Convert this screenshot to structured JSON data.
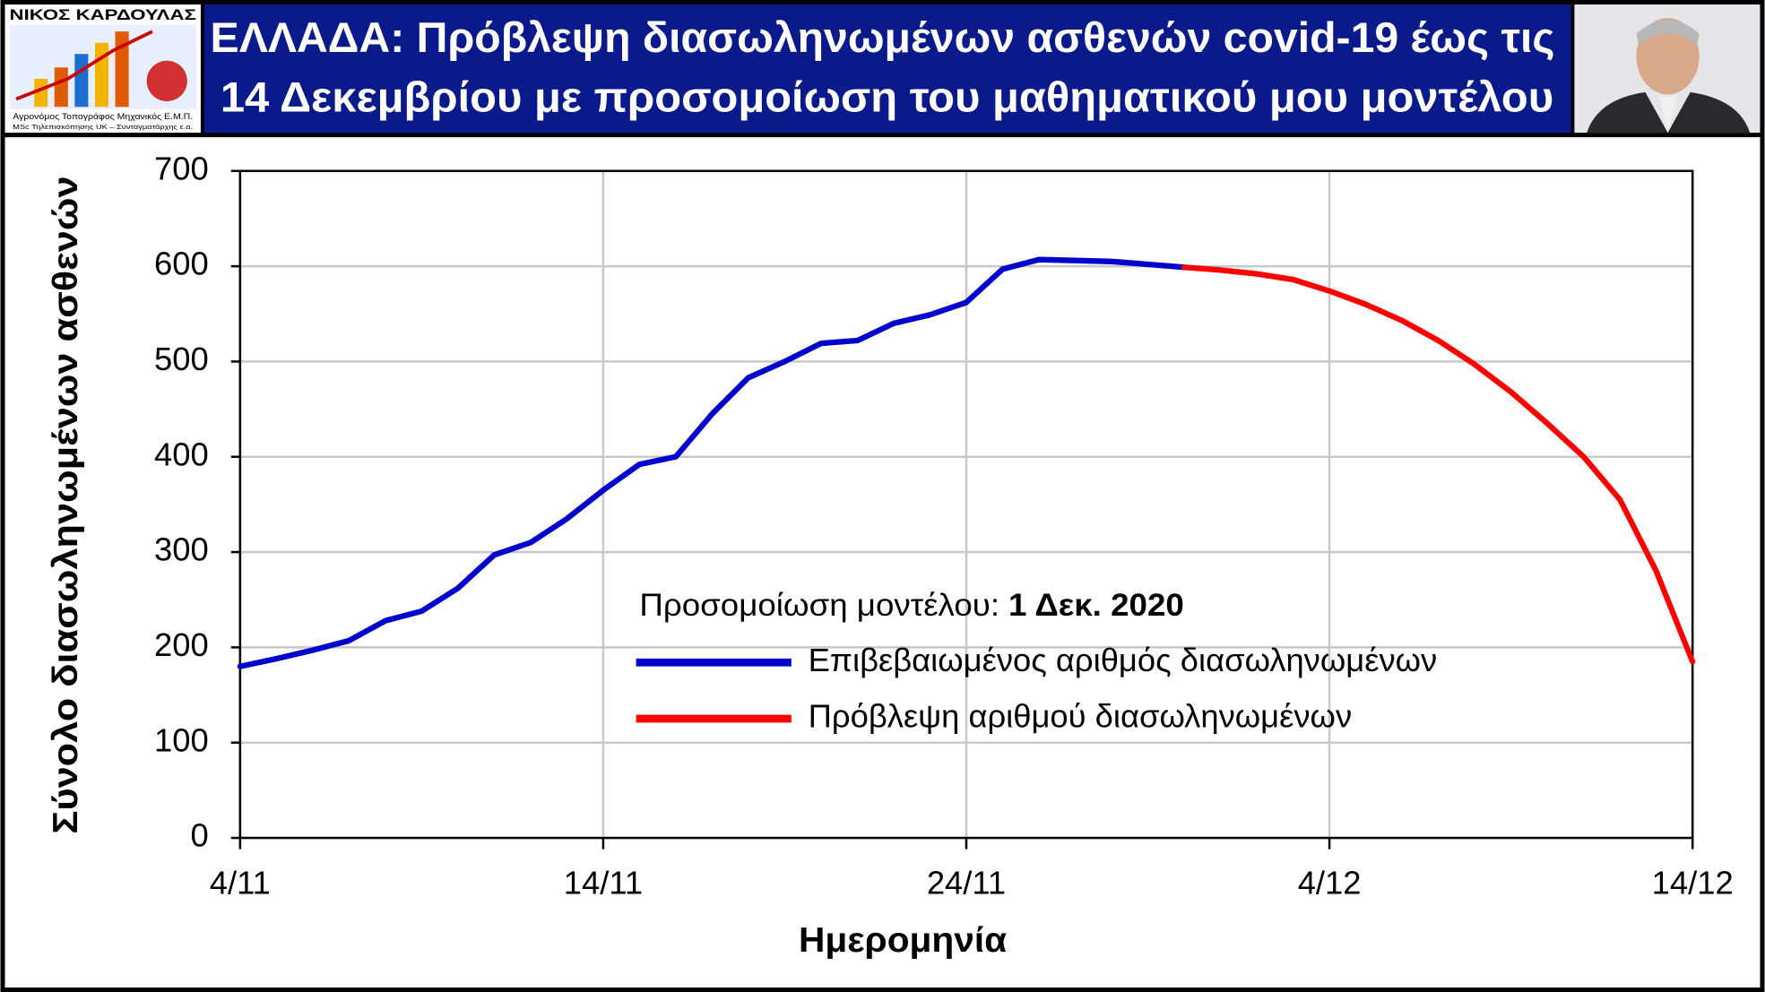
{
  "header": {
    "logo_name": "ΝΙΚΟΣ ΚΑΡΔΟΥΛΑΣ",
    "logo_line1": "Αγρονόμος Τοπογράφος Μηχανικός Ε.Μ.Π.",
    "logo_line2": "MSc Τηλεπισκόπησης UK – Συνταγματάρχης ε.α.",
    "title_line1": "ΕΛΛΑΔΑ: Πρόβλεψη διασωληνωμένων ασθενών covid-19 έως τις",
    "title_line2": "14 Δεκεμβρίου με προσομοίωση του μαθηματικού μου μοντέλου"
  },
  "chart_data": {
    "type": "line",
    "x_label": "Ημερομηνία",
    "y_label": "Σύνολο διασωληνωμένων ασθενών",
    "annotation": "Προσομοίωση μοντέλου:",
    "annotation_date": "1 Δεκ. 2020",
    "categories": [
      "4/11",
      "5/11",
      "6/11",
      "7/11",
      "8/11",
      "9/11",
      "10/11",
      "11/11",
      "12/11",
      "13/11",
      "14/11",
      "15/11",
      "16/11",
      "17/11",
      "18/11",
      "19/11",
      "20/11",
      "21/11",
      "22/11",
      "23/11",
      "24/11",
      "25/11",
      "26/11",
      "27/11",
      "28/11",
      "29/11",
      "30/11",
      "1/12",
      "2/12",
      "3/12",
      "4/12",
      "5/12",
      "6/12",
      "7/12",
      "8/12",
      "9/12",
      "10/12",
      "11/12",
      "12/12",
      "13/12",
      "14/12"
    ],
    "xticks": [
      "4/11",
      "14/11",
      "24/11",
      "4/12",
      "14/12"
    ],
    "ylim": [
      0,
      700
    ],
    "yticks": [
      0,
      100,
      200,
      300,
      400,
      500,
      600,
      700
    ],
    "grid": true,
    "series": [
      {
        "name": "Επιβεβαιωμένος αριθμός διασωληνωμένων",
        "color": "#0000cc",
        "values": [
          180,
          188,
          197,
          207,
          228,
          238,
          262,
          297,
          310,
          335,
          365,
          392,
          400,
          445,
          483,
          500,
          519,
          522,
          540,
          549,
          562,
          597,
          607,
          606,
          605,
          602,
          599,
          null,
          null,
          null,
          null,
          null,
          null,
          null,
          null,
          null,
          null,
          null,
          null,
          null,
          null
        ]
      },
      {
        "name": "Πρόβλεψη αριθμού διασωληνωμένων",
        "color": "#ff0000",
        "values": [
          null,
          null,
          null,
          null,
          null,
          null,
          null,
          null,
          null,
          null,
          null,
          null,
          null,
          null,
          null,
          null,
          null,
          null,
          null,
          null,
          null,
          null,
          null,
          null,
          null,
          null,
          599,
          596,
          592,
          586,
          574,
          560,
          543,
          522,
          497,
          468,
          435,
          400,
          355,
          280,
          185
        ]
      }
    ]
  }
}
